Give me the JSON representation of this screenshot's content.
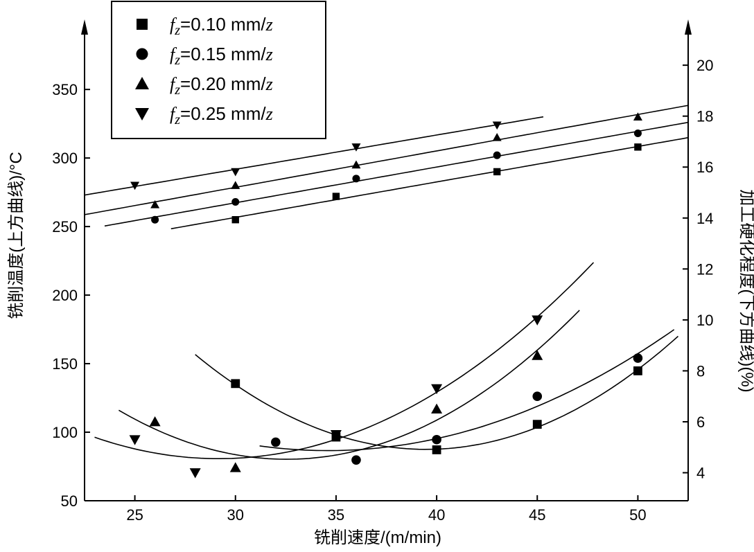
{
  "chart_data": {
    "type": "scatter",
    "xlabel": "铣削速度/(m/min)",
    "ylabel_left": "铣削温度(上方曲线)/°C",
    "ylabel_right": "加工硬化程度(下方曲线)(%)",
    "xlim": [
      22.5,
      52.5
    ],
    "ylim_left": [
      50,
      390
    ],
    "ylim_right": [
      2.9,
      21.2
    ],
    "x_ticks": [
      25,
      30,
      35,
      40,
      45,
      50
    ],
    "y_left_ticks": [
      50,
      100,
      150,
      200,
      250,
      300,
      350
    ],
    "y_right_ticks": [
      4,
      6,
      8,
      10,
      12,
      14,
      16,
      18,
      20
    ],
    "legend_position": "top-left",
    "legend": [
      {
        "marker": "square",
        "prefix": "f",
        "sub": "z",
        "suffix": "=0.10 mm/",
        "unit_var": "z"
      },
      {
        "marker": "circle",
        "prefix": "f",
        "sub": "z",
        "suffix": "=0.15 mm/",
        "unit_var": "z"
      },
      {
        "marker": "triangle-up",
        "prefix": "f",
        "sub": "z",
        "suffix": "=0.20 mm/",
        "unit_var": "z"
      },
      {
        "marker": "triangle-down",
        "prefix": "f",
        "sub": "z",
        "suffix": "=0.25 mm/",
        "unit_var": "z"
      }
    ],
    "temperature_series": [
      {
        "marker": "square",
        "points": [
          [
            30,
            255
          ],
          [
            35,
            272
          ],
          [
            43,
            290
          ],
          [
            50,
            308
          ]
        ],
        "curve_x": [
          26.8,
          52.5
        ]
      },
      {
        "marker": "circle",
        "points": [
          [
            26,
            255
          ],
          [
            30,
            268
          ],
          [
            36,
            285
          ],
          [
            43,
            302
          ],
          [
            50,
            318
          ]
        ],
        "curve_x": [
          23.5,
          52.5
        ]
      },
      {
        "marker": "triangle-up",
        "points": [
          [
            26,
            266
          ],
          [
            30,
            280
          ],
          [
            36,
            295
          ],
          [
            43,
            315
          ],
          [
            50,
            330
          ]
        ],
        "curve_x": [
          22.5,
          52.5
        ]
      },
      {
        "marker": "triangle-down",
        "points": [
          [
            25,
            280
          ],
          [
            30,
            290
          ],
          [
            36,
            308
          ],
          [
            43,
            324
          ]
        ],
        "curve_x": [
          22.5,
          45.3
        ]
      }
    ],
    "hardening_series": [
      {
        "marker": "square",
        "points": [
          [
            30,
            7.5
          ],
          [
            35,
            5.4
          ],
          [
            40,
            4.9
          ],
          [
            45,
            5.9
          ],
          [
            50,
            8.0
          ]
        ],
        "curve_x": [
          28,
          52
        ]
      },
      {
        "marker": "circle",
        "points": [
          [
            32,
            5.2
          ],
          [
            36,
            4.5
          ],
          [
            40,
            5.3
          ],
          [
            45,
            7.0
          ],
          [
            50,
            8.5
          ]
        ],
        "curve_x": [
          31.2,
          51.8
        ]
      },
      {
        "marker": "triangle-up",
        "points": [
          [
            26,
            6.0
          ],
          [
            30,
            4.2
          ],
          [
            40,
            6.5
          ],
          [
            45,
            8.6
          ]
        ],
        "curve_x": [
          24.2,
          47.1
        ]
      },
      {
        "marker": "triangle-down",
        "points": [
          [
            25,
            5.3
          ],
          [
            28,
            4.0
          ],
          [
            35,
            5.5
          ],
          [
            40,
            7.3
          ],
          [
            45,
            10.0
          ]
        ],
        "curve_x": [
          23,
          47.8
        ]
      }
    ]
  }
}
